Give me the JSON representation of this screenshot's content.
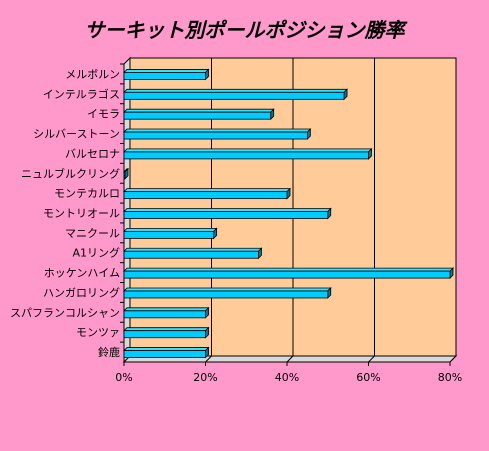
{
  "chart_data": {
    "type": "bar",
    "orientation": "horizontal",
    "title": "サーキット別ポールポジション勝率",
    "categories": [
      "メルボルン",
      "インテルラゴス",
      "イモラ",
      "シルバーストーン",
      "バルセロナ",
      "ニュルブルクリング",
      "モンテカルロ",
      "モントリオール",
      "マニクール",
      "A1リング",
      "ホッケンハイム",
      "ハンガロリング",
      "スパフランコルシャン",
      "モンツァ",
      "鈴鹿"
    ],
    "values": [
      20,
      54,
      36,
      45,
      60,
      0,
      40,
      50,
      22,
      33,
      80,
      50,
      20,
      20,
      20
    ],
    "xlim": [
      0,
      80
    ],
    "xticks": [
      "0%",
      "20%",
      "40%",
      "60%",
      "80%"
    ],
    "xlabel": "",
    "ylabel": "",
    "grid": true,
    "legend": "none",
    "colors": {
      "bar_front": "#00ccff",
      "bar_top": "#33e0ff",
      "bar_side": "#007a99",
      "wall": "#ffcc99",
      "background": "#ff99cc",
      "gridline": "#000000"
    }
  }
}
